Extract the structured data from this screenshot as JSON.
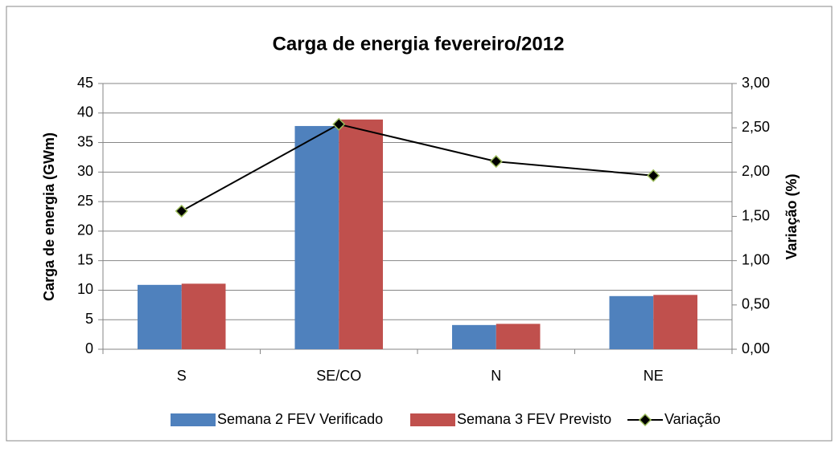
{
  "chart_data": {
    "type": "bar",
    "title": "Carga de energia  fevereiro/2012",
    "y_label": "Carga de energia (GWm)",
    "y2_label": "Variação (%)",
    "categories": [
      "S",
      "SE/CO",
      "N",
      "NE"
    ],
    "series": [
      {
        "name": "Semana  2 FEV Verificado",
        "color": "#4f81bd",
        "type": "bar",
        "values": [
          10.9,
          37.8,
          4.1,
          9.0
        ]
      },
      {
        "name": "Semana 3 FEV Previsto",
        "color": "#c0504d",
        "type": "bar",
        "values": [
          11.1,
          38.9,
          4.3,
          9.2
        ]
      },
      {
        "name": "Variação",
        "color": "#000000",
        "type": "line",
        "axis": "y2",
        "values": [
          1.56,
          2.54,
          2.12,
          1.96
        ]
      }
    ],
    "ylim": [
      0,
      45
    ],
    "yticks": [
      0,
      5,
      10,
      15,
      20,
      25,
      30,
      35,
      40,
      45
    ],
    "y2lim": [
      0,
      3
    ],
    "y2ticks": [
      {
        "value": 0,
        "label": "0,00"
      },
      {
        "value": 0.5,
        "label": "0,50"
      },
      {
        "value": 1,
        "label": "1,00"
      },
      {
        "value": 1.5,
        "label": "1,50"
      },
      {
        "value": 2,
        "label": "2,00"
      },
      {
        "value": 2.5,
        "label": "2,50"
      },
      {
        "value": 3,
        "label": "3,00"
      }
    ],
    "grid": true,
    "legend": "bottom"
  }
}
